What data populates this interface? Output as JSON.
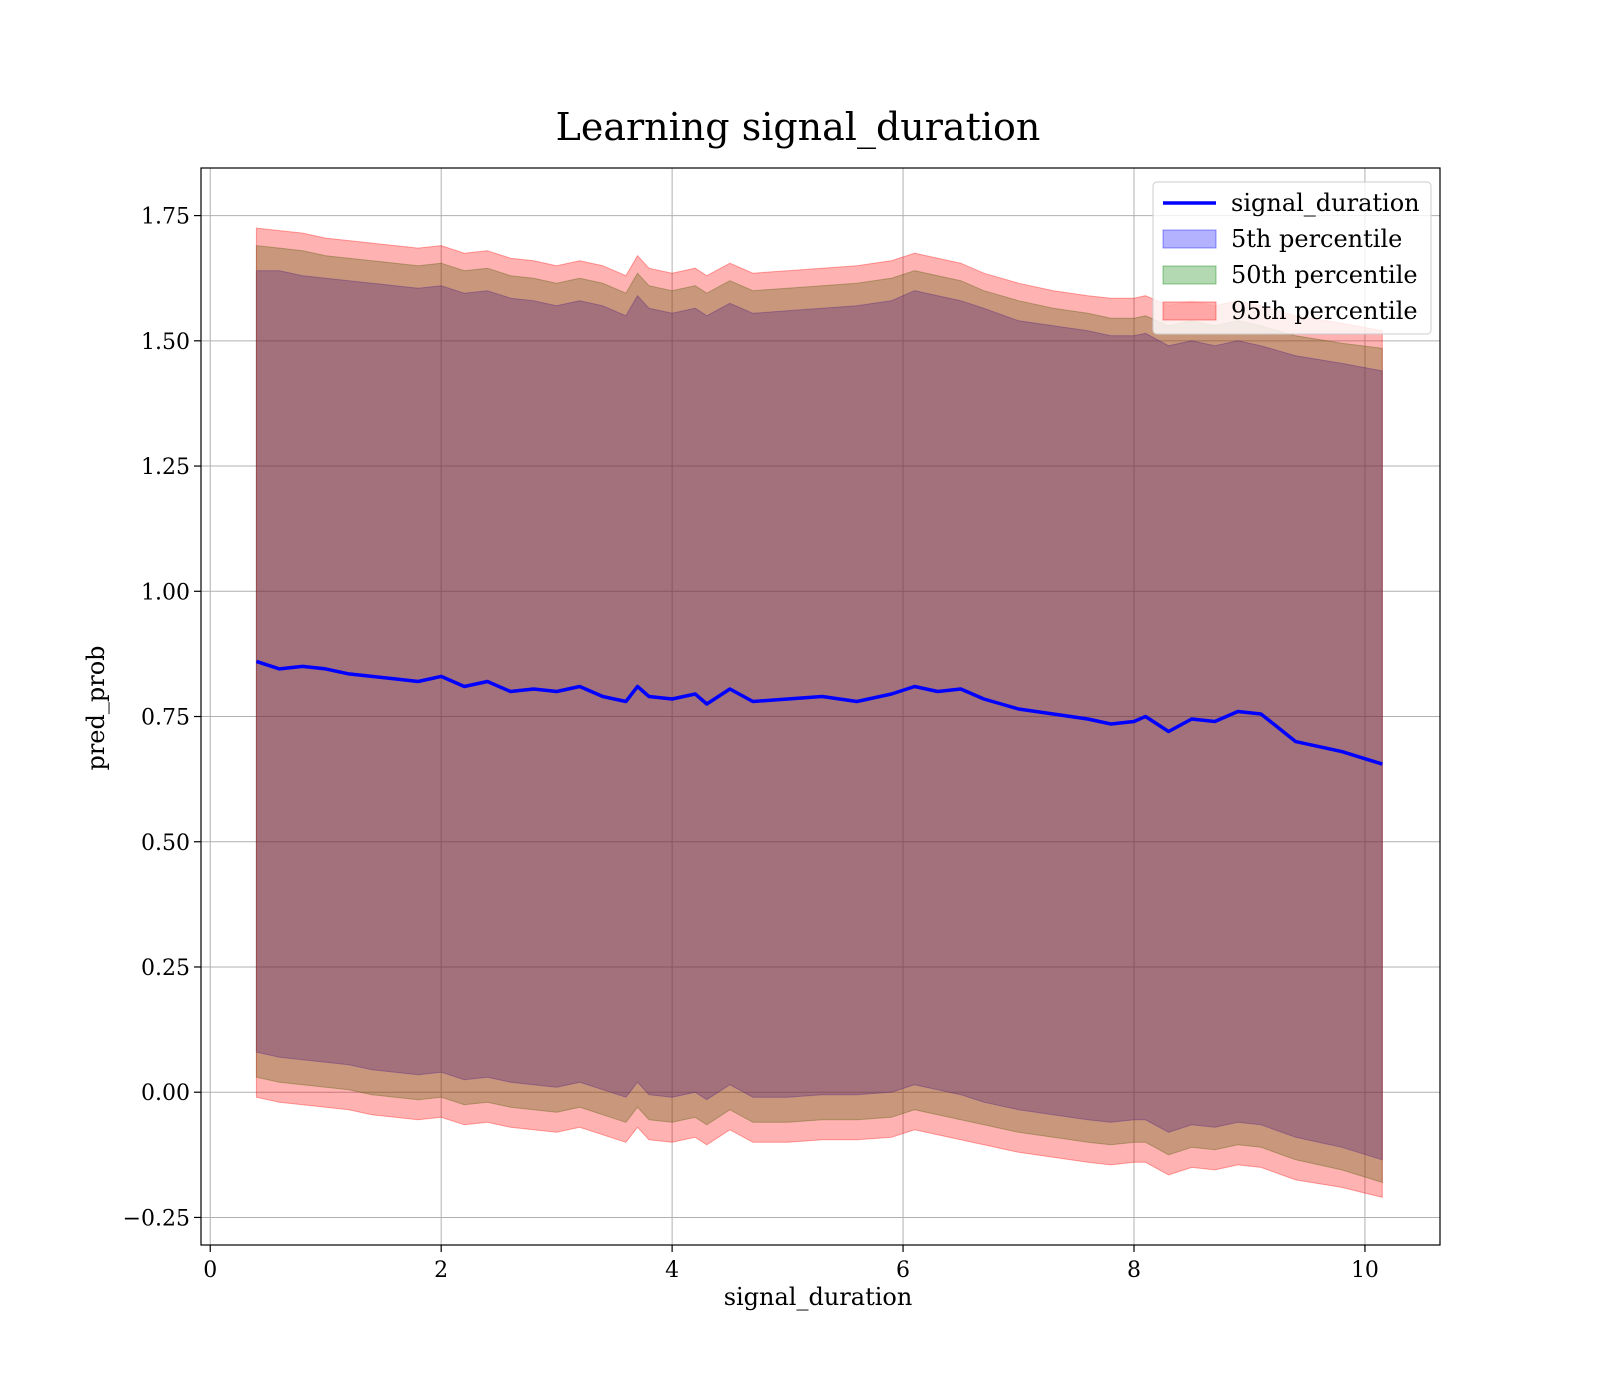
{
  "chart_data": {
    "type": "area",
    "title": "Learning signal_duration",
    "xlabel": "signal_duration",
    "ylabel": "pred_prob",
    "xlim": [
      -0.08,
      10.65
    ],
    "ylim": [
      -0.305,
      1.845
    ],
    "xticks": [
      0,
      2,
      4,
      6,
      8,
      10
    ],
    "xtick_labels": [
      "0",
      "2",
      "4",
      "6",
      "8",
      "10"
    ],
    "yticks": [
      -0.25,
      0.0,
      0.25,
      0.5,
      0.75,
      1.0,
      1.25,
      1.5,
      1.75
    ],
    "ytick_labels": [
      "−0.25",
      "0.00",
      "0.25",
      "0.50",
      "0.75",
      "1.00",
      "1.25",
      "1.50",
      "1.75"
    ],
    "grid": true,
    "legend_position": "top-right",
    "legend": [
      {
        "label": "signal_duration",
        "kind": "line",
        "color": "#0000ff"
      },
      {
        "label": "5th percentile",
        "kind": "patch",
        "color": "#0000ff"
      },
      {
        "label": "50th percentile",
        "kind": "patch",
        "color": "#008000"
      },
      {
        "label": "95th percentile",
        "kind": "patch",
        "color": "#ff0000"
      }
    ],
    "x": [
      0.4,
      0.6,
      0.8,
      1.0,
      1.2,
      1.4,
      1.6,
      1.8,
      2.0,
      2.2,
      2.4,
      2.6,
      2.8,
      3.0,
      3.2,
      3.4,
      3.6,
      3.7,
      3.8,
      4.0,
      4.2,
      4.3,
      4.5,
      4.7,
      5.0,
      5.3,
      5.6,
      5.9,
      6.1,
      6.3,
      6.5,
      6.7,
      7.0,
      7.3,
      7.6,
      7.8,
      8.0,
      8.1,
      8.3,
      8.5,
      8.7,
      8.9,
      9.1,
      9.4,
      9.8,
      10.15
    ],
    "series": [
      {
        "name": "signal_duration",
        "color": "#0000ff",
        "values": [
          0.86,
          0.845,
          0.85,
          0.845,
          0.835,
          0.83,
          0.825,
          0.82,
          0.83,
          0.81,
          0.82,
          0.8,
          0.805,
          0.8,
          0.81,
          0.79,
          0.78,
          0.81,
          0.79,
          0.785,
          0.795,
          0.775,
          0.805,
          0.78,
          0.785,
          0.79,
          0.78,
          0.795,
          0.81,
          0.8,
          0.805,
          0.785,
          0.765,
          0.755,
          0.745,
          0.735,
          0.74,
          0.75,
          0.72,
          0.745,
          0.74,
          0.76,
          0.755,
          0.7,
          0.68,
          0.655
        ]
      }
    ],
    "bands": [
      {
        "name": "5th percentile",
        "color": "#0000ff",
        "upper": [
          1.64,
          1.64,
          1.63,
          1.625,
          1.62,
          1.615,
          1.61,
          1.605,
          1.61,
          1.595,
          1.6,
          1.585,
          1.58,
          1.57,
          1.58,
          1.57,
          1.55,
          1.59,
          1.565,
          1.555,
          1.565,
          1.55,
          1.575,
          1.555,
          1.56,
          1.565,
          1.57,
          1.58,
          1.6,
          1.59,
          1.58,
          1.565,
          1.54,
          1.53,
          1.52,
          1.51,
          1.51,
          1.515,
          1.49,
          1.5,
          1.49,
          1.5,
          1.49,
          1.47,
          1.455,
          1.44
        ],
        "lower": [
          0.08,
          0.07,
          0.065,
          0.06,
          0.055,
          0.045,
          0.04,
          0.035,
          0.04,
          0.025,
          0.03,
          0.02,
          0.015,
          0.01,
          0.02,
          0.005,
          -0.01,
          0.02,
          -0.005,
          -0.01,
          0.0,
          -0.015,
          0.015,
          -0.01,
          -0.01,
          -0.005,
          -0.005,
          0.0,
          0.015,
          0.005,
          -0.005,
          -0.02,
          -0.035,
          -0.045,
          -0.055,
          -0.06,
          -0.055,
          -0.055,
          -0.08,
          -0.065,
          -0.07,
          -0.06,
          -0.065,
          -0.09,
          -0.11,
          -0.135
        ]
      },
      {
        "name": "50th percentile",
        "color": "#008000",
        "upper": [
          1.69,
          1.685,
          1.68,
          1.67,
          1.665,
          1.66,
          1.655,
          1.65,
          1.655,
          1.64,
          1.645,
          1.63,
          1.625,
          1.615,
          1.625,
          1.615,
          1.595,
          1.635,
          1.61,
          1.6,
          1.61,
          1.595,
          1.62,
          1.6,
          1.605,
          1.61,
          1.615,
          1.625,
          1.64,
          1.63,
          1.62,
          1.6,
          1.58,
          1.565,
          1.555,
          1.545,
          1.545,
          1.55,
          1.53,
          1.54,
          1.53,
          1.54,
          1.53,
          1.51,
          1.495,
          1.485
        ],
        "lower": [
          0.03,
          0.02,
          0.015,
          0.01,
          0.005,
          -0.005,
          -0.01,
          -0.015,
          -0.01,
          -0.025,
          -0.02,
          -0.03,
          -0.035,
          -0.04,
          -0.03,
          -0.045,
          -0.06,
          -0.03,
          -0.055,
          -0.06,
          -0.05,
          -0.065,
          -0.035,
          -0.06,
          -0.06,
          -0.055,
          -0.055,
          -0.05,
          -0.035,
          -0.045,
          -0.055,
          -0.065,
          -0.08,
          -0.09,
          -0.1,
          -0.105,
          -0.1,
          -0.1,
          -0.125,
          -0.11,
          -0.115,
          -0.105,
          -0.11,
          -0.135,
          -0.155,
          -0.18
        ]
      },
      {
        "name": "95th percentile",
        "color": "#ff0000",
        "upper": [
          1.725,
          1.72,
          1.715,
          1.705,
          1.7,
          1.695,
          1.69,
          1.685,
          1.69,
          1.675,
          1.68,
          1.665,
          1.66,
          1.65,
          1.66,
          1.65,
          1.63,
          1.67,
          1.645,
          1.635,
          1.645,
          1.63,
          1.655,
          1.635,
          1.64,
          1.645,
          1.65,
          1.66,
          1.675,
          1.665,
          1.655,
          1.635,
          1.615,
          1.6,
          1.59,
          1.585,
          1.585,
          1.59,
          1.57,
          1.58,
          1.57,
          1.58,
          1.57,
          1.55,
          1.535,
          1.52
        ],
        "lower": [
          -0.01,
          -0.02,
          -0.025,
          -0.03,
          -0.035,
          -0.045,
          -0.05,
          -0.055,
          -0.05,
          -0.065,
          -0.06,
          -0.07,
          -0.075,
          -0.08,
          -0.07,
          -0.085,
          -0.1,
          -0.07,
          -0.095,
          -0.1,
          -0.09,
          -0.105,
          -0.075,
          -0.1,
          -0.1,
          -0.095,
          -0.095,
          -0.09,
          -0.075,
          -0.085,
          -0.095,
          -0.105,
          -0.12,
          -0.13,
          -0.14,
          -0.145,
          -0.14,
          -0.14,
          -0.165,
          -0.15,
          -0.155,
          -0.145,
          -0.15,
          -0.175,
          -0.19,
          -0.21
        ]
      }
    ]
  }
}
